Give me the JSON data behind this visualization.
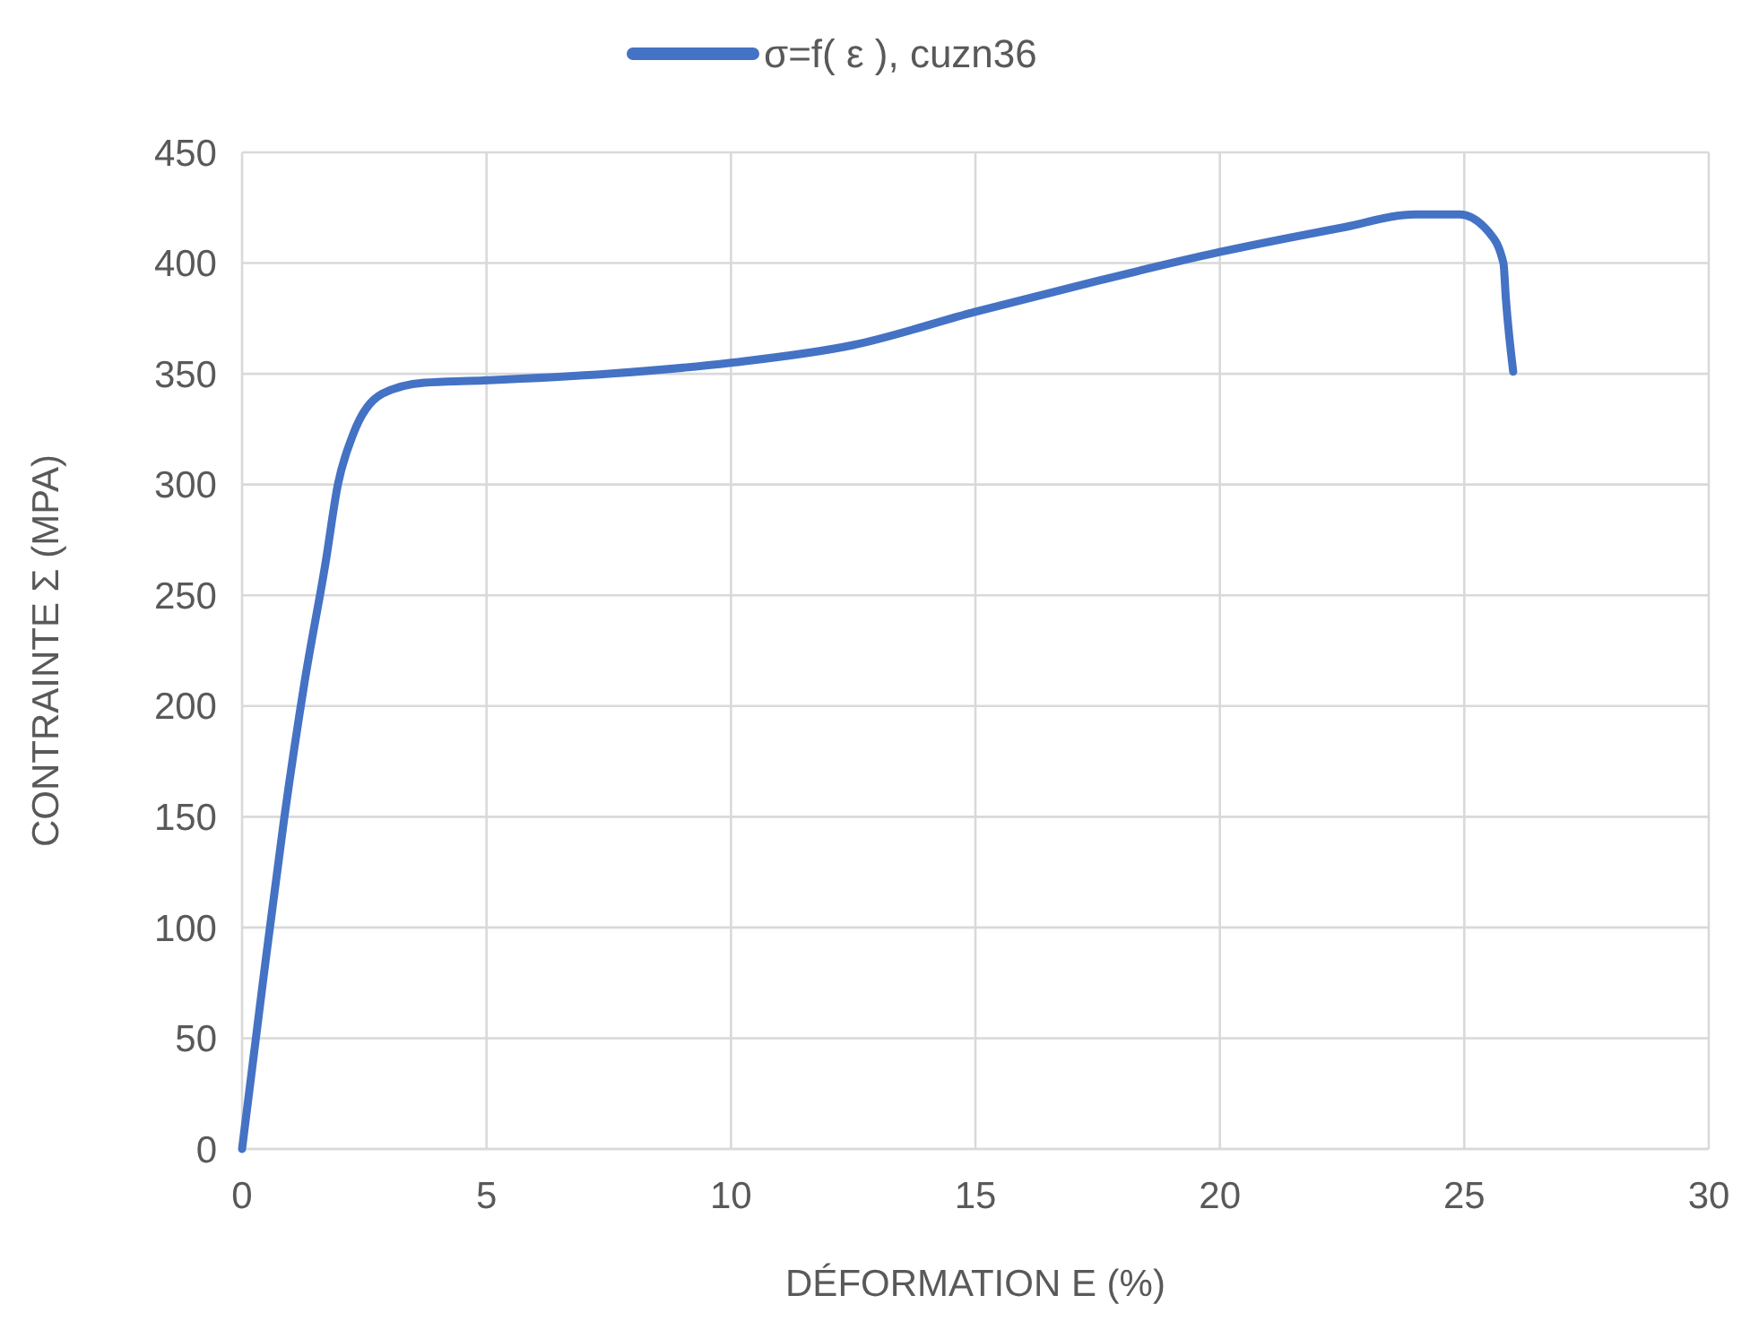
{
  "chart_data": {
    "type": "line",
    "xlabel": "DÉFORMATION E (%)",
    "ylabel": "CONTRAINTE Σ (MPA)",
    "xlim": [
      0,
      30
    ],
    "xticks": [
      0,
      5,
      10,
      15,
      20,
      25,
      30
    ],
    "ylim": [
      0,
      450
    ],
    "yticks": [
      0,
      50,
      100,
      150,
      200,
      250,
      300,
      350,
      400,
      450
    ],
    "grid": true,
    "legend": "top",
    "line_style": "solid",
    "marker": "none",
    "series": [
      {
        "name": "σ=f( ε ), cuzn36",
        "color": "#4472c4",
        "x": [
          0,
          0.43,
          0.86,
          1.28,
          1.71,
          1.96,
          2.26,
          2.87,
          3.73,
          4.95,
          7.5,
          10,
          12.5,
          15,
          17.5,
          20,
          22.5,
          24,
          24.9,
          25.5,
          25.8,
          25.85,
          26
        ],
        "values": [
          0,
          76,
          149,
          211,
          265,
          300,
          322,
          341,
          346,
          347,
          350,
          355,
          363,
          378,
          392,
          405,
          416,
          422,
          422,
          414,
          400,
          384,
          351
        ]
      }
    ]
  }
}
